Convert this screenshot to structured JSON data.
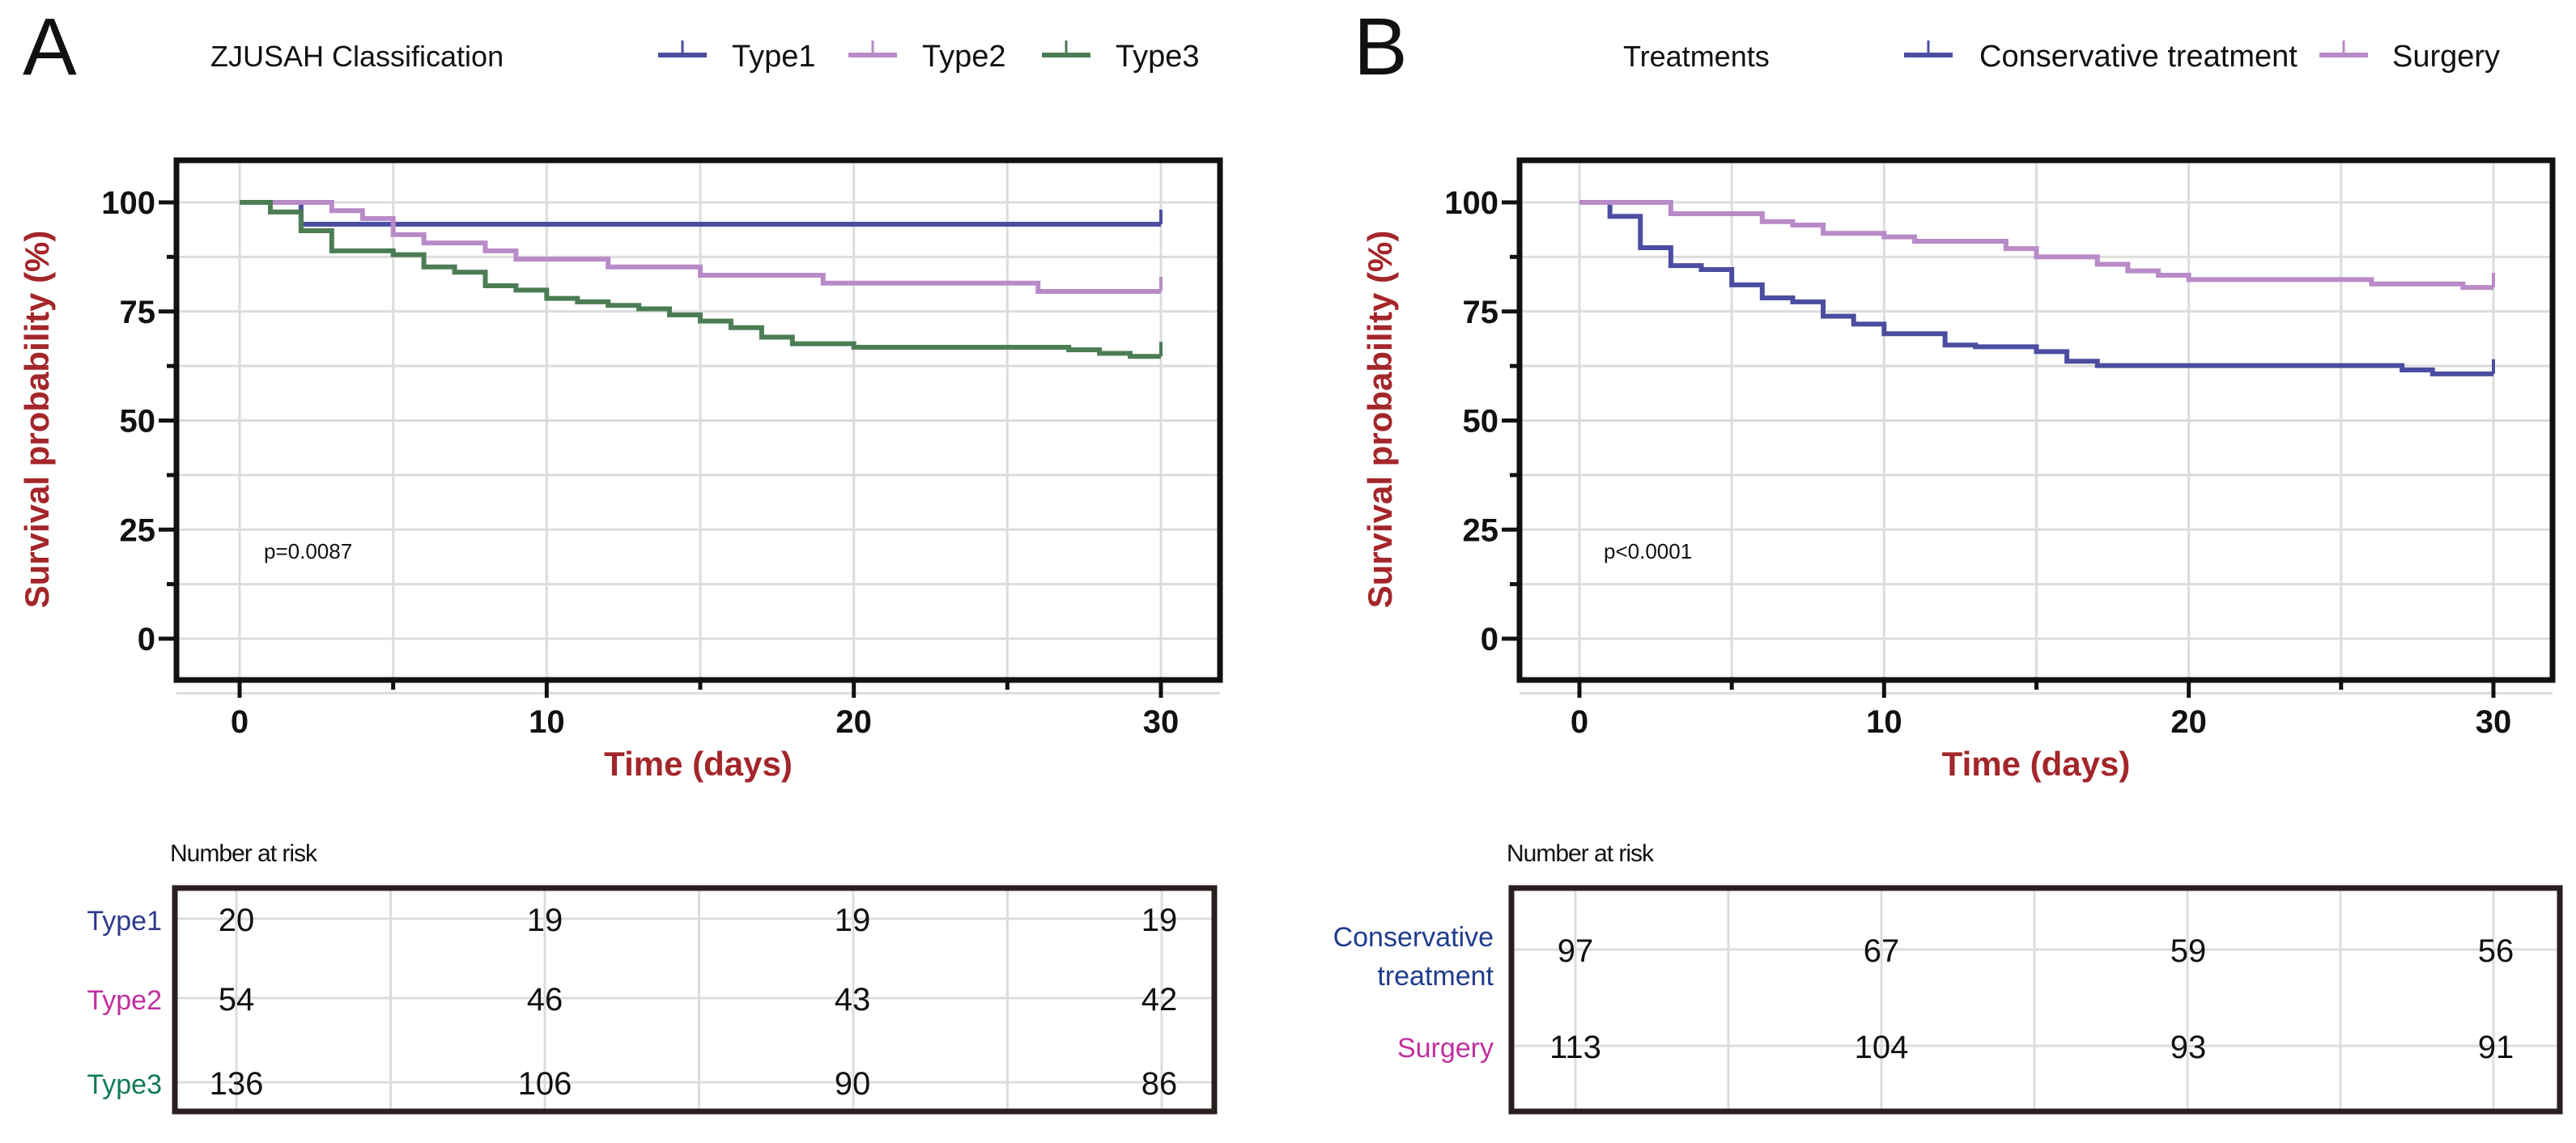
{
  "chart_data": [
    {
      "type": "line",
      "panel_label": "A",
      "legend_title": "ZJUSAH Classification",
      "legend_position": "top",
      "xlabel": "Time (days)",
      "ylabel": "Survival probability (%)",
      "xlim": [
        0,
        30
      ],
      "ylim": [
        -10,
        110
      ],
      "xticks": [
        "0",
        "10",
        "20",
        "30"
      ],
      "yticks": [
        "0",
        "25",
        "50",
        "75",
        "100"
      ],
      "grid": true,
      "annotation": "p=0.0087",
      "series": [
        {
          "name": "Type1",
          "color": "#4b4ea0",
          "steps": [
            [
              0,
              100
            ],
            [
              2,
              95
            ],
            [
              30,
              95
            ]
          ]
        },
        {
          "name": "Type2",
          "color": "#b98ac8",
          "steps": [
            [
              0,
              100
            ],
            [
              3,
              98.1
            ],
            [
              4,
              96.3
            ],
            [
              5,
              92.6
            ],
            [
              6,
              90.7
            ],
            [
              8,
              88.9
            ],
            [
              9,
              87.0
            ],
            [
              12,
              85.2
            ],
            [
              15,
              83.3
            ],
            [
              19,
              81.5
            ],
            [
              26,
              79.6
            ],
            [
              30,
              79.6
            ]
          ]
        },
        {
          "name": "Type3",
          "color": "#4b7d55",
          "steps": [
            [
              0,
              100
            ],
            [
              1,
              97.8
            ],
            [
              2,
              93.5
            ],
            [
              3,
              88.9
            ],
            [
              5,
              88.0
            ],
            [
              6,
              85.2
            ],
            [
              7,
              84.0
            ],
            [
              8,
              80.9
            ],
            [
              9,
              79.9
            ],
            [
              10,
              78.0
            ],
            [
              11,
              77.2
            ],
            [
              12,
              76.4
            ],
            [
              13,
              75.6
            ],
            [
              14,
              74.2
            ],
            [
              15,
              72.8
            ],
            [
              16,
              71.3
            ],
            [
              17,
              69.1
            ],
            [
              18,
              67.6
            ],
            [
              20,
              66.8
            ],
            [
              27,
              66.2
            ],
            [
              28,
              65.4
            ],
            [
              29,
              64.7
            ],
            [
              30,
              64.7
            ]
          ]
        }
      ],
      "risk_table": {
        "title": "Number at risk",
        "times": [
          0,
          10,
          20,
          30
        ],
        "rows": [
          {
            "label": "Type1",
            "color": "#2e3a8c",
            "values": [
              "20",
              "19",
              "19",
              "19"
            ]
          },
          {
            "label": "Type2",
            "color": "#c0309f",
            "values": [
              "54",
              "46",
              "43",
              "42"
            ]
          },
          {
            "label": "Type3",
            "color": "#117a5a",
            "values": [
              "136",
              "106",
              "90",
              "86"
            ]
          }
        ]
      }
    },
    {
      "type": "line",
      "panel_label": "B",
      "legend_title": "Treatments",
      "legend_position": "top",
      "xlabel": "Time (days)",
      "ylabel": "Survival probability (%)",
      "xlim": [
        0,
        30
      ],
      "ylim": [
        -10,
        110
      ],
      "xticks": [
        "0",
        "10",
        "20",
        "30"
      ],
      "yticks": [
        "0",
        "25",
        "50",
        "75",
        "100"
      ],
      "grid": true,
      "annotation": "p<0.0001",
      "series": [
        {
          "name": "Conservative treatment",
          "color": "#4b4ea0",
          "steps": [
            [
              0,
              100
            ],
            [
              1,
              96.8
            ],
            [
              2,
              89.6
            ],
            [
              3,
              85.5
            ],
            [
              4,
              84.6
            ],
            [
              5,
              81.1
            ],
            [
              6,
              78.1
            ],
            [
              7,
              77.2
            ],
            [
              8,
              73.9
            ],
            [
              9,
              72.1
            ],
            [
              10,
              69.9
            ],
            [
              12,
              67.3
            ],
            [
              13,
              66.9
            ],
            [
              15,
              65.8
            ],
            [
              16,
              63.6
            ],
            [
              17,
              62.6
            ],
            [
              27,
              61.6
            ],
            [
              28,
              60.7
            ],
            [
              30,
              60.7
            ]
          ]
        },
        {
          "name": "Surgery",
          "color": "#b98ac8",
          "steps": [
            [
              0,
              100
            ],
            [
              3,
              97.4
            ],
            [
              6,
              95.6
            ],
            [
              7,
              94.8
            ],
            [
              8,
              92.9
            ],
            [
              10,
              92.1
            ],
            [
              11,
              91.1
            ],
            [
              14,
              89.4
            ],
            [
              15,
              87.5
            ],
            [
              17,
              85.8
            ],
            [
              18,
              84.3
            ],
            [
              19,
              83.3
            ],
            [
              20,
              82.3
            ],
            [
              26,
              81.3
            ],
            [
              29,
              80.5
            ],
            [
              30,
              80.5
            ]
          ]
        }
      ],
      "risk_table": {
        "title": "Number at risk",
        "times": [
          0,
          10,
          20,
          30
        ],
        "rows": [
          {
            "label": "Conservative treatment",
            "label_lines": [
              "Conservative",
              "treatment"
            ],
            "color": "#1f3c8c",
            "values": [
              "97",
              "67",
              "59",
              "56"
            ]
          },
          {
            "label": "Surgery",
            "color": "#c0309f",
            "values": [
              "113",
              "104",
              "93",
              "91"
            ]
          }
        ]
      }
    }
  ]
}
